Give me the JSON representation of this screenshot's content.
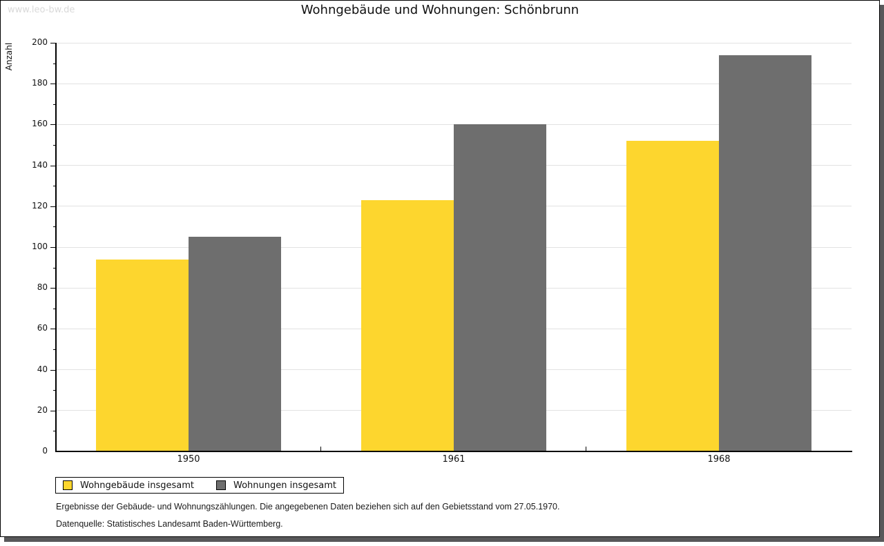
{
  "watermark": "www.leo-bw.de",
  "title": "Wohngebäude und Wohnungen: Schönbrunn",
  "chart_data": {
    "type": "bar",
    "title": "Wohngebäude und Wohnungen: Schönbrunn",
    "categories": [
      "1950",
      "1961",
      "1968"
    ],
    "series": [
      {
        "name": "Wohngebäude insgesamt",
        "color": "#fdd62e",
        "values": [
          94,
          123,
          152
        ]
      },
      {
        "name": "Wohnungen insgesamt",
        "color": "#6e6e6e",
        "values": [
          105,
          160,
          194
        ]
      }
    ],
    "xlabel": "",
    "ylabel": "Anzahl",
    "ylim": [
      0,
      200
    ],
    "ytick_step": 20,
    "minor_tick_step": 10,
    "grid": true,
    "legend_position": "bottom-left"
  },
  "footnotes": [
    "Ergebnisse der Gebäude- und Wohnungszählungen. Die angegebenen Daten beziehen sich auf den Gebietsstand vom 27.05.1970.",
    "Datenquelle: Statistisches Landesamt Baden-Württemberg."
  ],
  "colors": {
    "bar_yellow": "#fdd62e",
    "bar_gray": "#6e6e6e",
    "axis": "#000000",
    "gridline": "#e2e2e2",
    "shadow": "#58585a",
    "watermark_text": "#d9d9d9"
  }
}
